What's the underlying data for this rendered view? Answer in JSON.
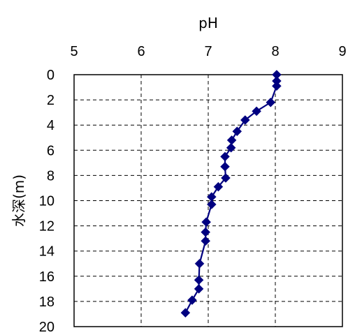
{
  "chart_data": {
    "type": "line",
    "title": "",
    "xlabel": "pH",
    "ylabel": "水深(m)",
    "x_axis_position": "top",
    "y_axis_inverted": true,
    "xlim": [
      5,
      9
    ],
    "ylim": [
      0,
      20
    ],
    "x_ticks": [
      "5",
      "6",
      "7",
      "8",
      "9"
    ],
    "y_ticks": [
      "0",
      "2",
      "4",
      "6",
      "8",
      "10",
      "12",
      "14",
      "16",
      "18",
      "20"
    ],
    "x_tick_values": [
      5,
      6,
      7,
      8,
      9
    ],
    "y_tick_values": [
      0,
      2,
      4,
      6,
      8,
      10,
      12,
      14,
      16,
      18,
      20
    ],
    "grid": "dashed",
    "legend": "none",
    "colors": {
      "series": "#000080",
      "grid": "#000000",
      "axes": "#000000"
    },
    "series": [
      {
        "name": "",
        "marker": "diamond",
        "points": [
          {
            "ph": 8.02,
            "depth": 0.0
          },
          {
            "ph": 8.02,
            "depth": 0.5
          },
          {
            "ph": 8.02,
            "depth": 0.9
          },
          {
            "ph": 7.93,
            "depth": 2.2
          },
          {
            "ph": 7.72,
            "depth": 2.9
          },
          {
            "ph": 7.55,
            "depth": 3.6
          },
          {
            "ph": 7.43,
            "depth": 4.5
          },
          {
            "ph": 7.35,
            "depth": 5.2
          },
          {
            "ph": 7.34,
            "depth": 5.8
          },
          {
            "ph": 7.25,
            "depth": 6.5
          },
          {
            "ph": 7.25,
            "depth": 7.3
          },
          {
            "ph": 7.26,
            "depth": 8.2
          },
          {
            "ph": 7.15,
            "depth": 8.9
          },
          {
            "ph": 7.05,
            "depth": 9.7
          },
          {
            "ph": 7.05,
            "depth": 10.3
          },
          {
            "ph": 6.97,
            "depth": 11.7
          },
          {
            "ph": 6.96,
            "depth": 12.5
          },
          {
            "ph": 6.96,
            "depth": 13.2
          },
          {
            "ph": 6.87,
            "depth": 15.0
          },
          {
            "ph": 6.86,
            "depth": 16.3
          },
          {
            "ph": 6.86,
            "depth": 17.0
          },
          {
            "ph": 6.76,
            "depth": 17.9
          },
          {
            "ph": 6.66,
            "depth": 18.9
          }
        ]
      }
    ]
  }
}
